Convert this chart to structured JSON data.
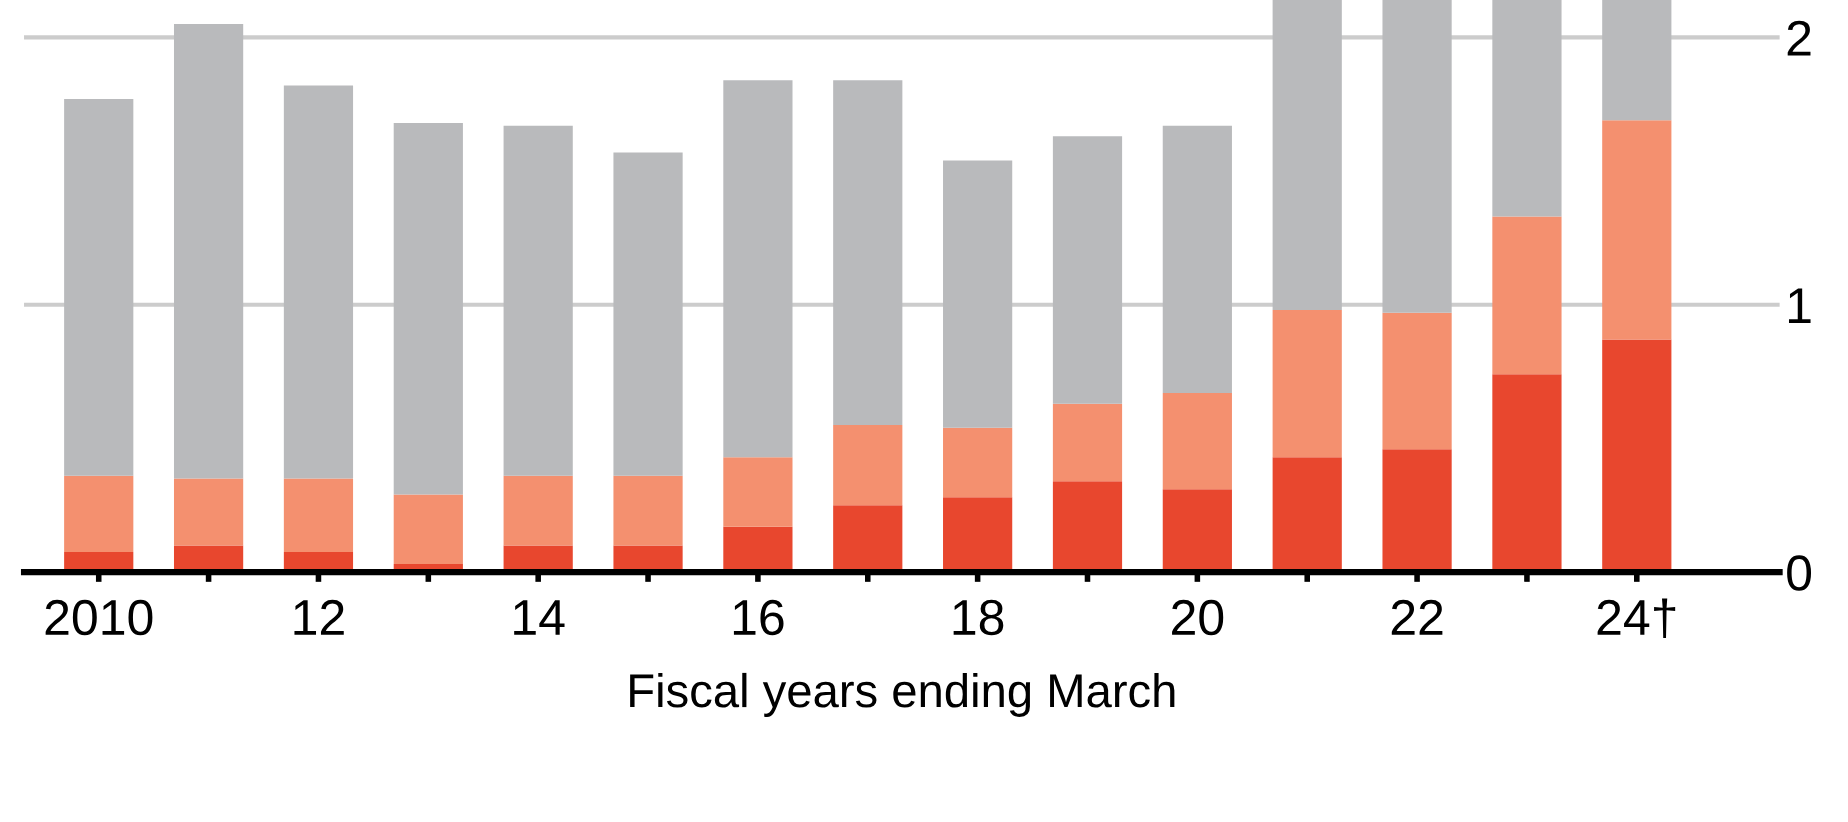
{
  "chart_data": {
    "type": "bar",
    "stacked": true,
    "xlabel": "Fiscal years ending March",
    "categories": [
      "2010",
      null,
      "12",
      null,
      "14",
      null,
      "16",
      null,
      "18",
      null,
      "20",
      null,
      "22",
      null,
      "24†"
    ],
    "series": [
      {
        "color": "#e8472e",
        "values": [
          0.075,
          0.1,
          0.075,
          0.03,
          0.1,
          0.1,
          0.17,
          0.25,
          0.28,
          0.34,
          0.31,
          0.43,
          0.46,
          0.74,
          0.87
        ]
      },
      {
        "color": "#f4906f",
        "values": [
          0.285,
          0.25,
          0.275,
          0.26,
          0.26,
          0.26,
          0.26,
          0.3,
          0.26,
          0.29,
          0.36,
          0.55,
          0.51,
          0.59,
          0.82
        ]
      },
      {
        "color": "#b9babc",
        "values": [
          1.41,
          1.7,
          1.47,
          1.39,
          1.31,
          1.21,
          1.41,
          1.29,
          1.0,
          1.0,
          1.0,
          1.16,
          1.17,
          0.81,
          0.45
        ]
      }
    ],
    "ylim": [
      0,
      2.14
    ],
    "yticks": [
      0,
      1,
      2
    ],
    "grid": "y"
  }
}
